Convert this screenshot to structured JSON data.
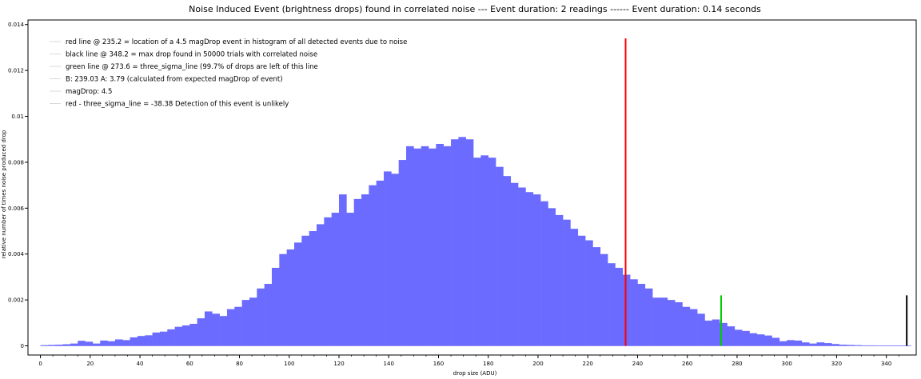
{
  "chart_data": {
    "type": "bar",
    "title": "Noise Induced Event (brightness drops) found in correlated noise --- Event duration: 2 readings ------ Event duration: 0.14 seconds",
    "xlabel": "drop size (ADU)",
    "ylabel": "relative number of times noise produced drop",
    "xlim": [
      -5,
      352
    ],
    "ylim": [
      -0.0004,
      0.0142
    ],
    "xticks": [
      0,
      20,
      40,
      60,
      80,
      100,
      120,
      140,
      160,
      180,
      200,
      220,
      240,
      260,
      280,
      300,
      320,
      340
    ],
    "yticks": [
      0,
      0.002,
      0.004,
      0.006,
      0.008,
      0.01,
      0.012,
      0.014
    ],
    "ytick_labels": [
      "0",
      "0.002",
      "0.004",
      "0.006",
      "0.008",
      "0.01",
      "0.012",
      "0.014"
    ],
    "grid": false,
    "legend_position": "top-left",
    "histogram": {
      "name": "histogram of all detected events due to noise",
      "color": "#6b6bff",
      "bin_width": 3,
      "bin_start": 0,
      "values": [
        3e-05,
        4e-05,
        5e-05,
        7e-05,
        0.0001,
        0.00022,
        0.00018,
        0.0001,
        0.00023,
        0.0002,
        0.00028,
        0.00025,
        0.00037,
        0.00043,
        0.00046,
        0.00058,
        0.00062,
        0.00072,
        0.00083,
        0.00089,
        0.00096,
        0.0012,
        0.0015,
        0.0014,
        0.0013,
        0.0016,
        0.0017,
        0.002,
        0.0021,
        0.0025,
        0.0027,
        0.0034,
        0.004,
        0.0042,
        0.0045,
        0.0048,
        0.005,
        0.0053,
        0.0056,
        0.0058,
        0.0066,
        0.0058,
        0.0064,
        0.0066,
        0.007,
        0.0072,
        0.0076,
        0.0075,
        0.0081,
        0.0087,
        0.0086,
        0.0087,
        0.0086,
        0.0088,
        0.0087,
        0.009,
        0.0091,
        0.009,
        0.0082,
        0.0083,
        0.0082,
        0.0078,
        0.0074,
        0.0071,
        0.0069,
        0.0067,
        0.0066,
        0.0063,
        0.006,
        0.0057,
        0.0055,
        0.0051,
        0.0048,
        0.0046,
        0.0043,
        0.004,
        0.0036,
        0.0034,
        0.0031,
        0.0029,
        0.0027,
        0.0025,
        0.0021,
        0.0021,
        0.002,
        0.0019,
        0.0017,
        0.0016,
        0.0014,
        0.0011,
        0.00115,
        0.001,
        0.00085,
        0.0007,
        0.00065,
        0.00055,
        0.0005,
        0.00045,
        0.00035,
        0.0002,
        0.00025,
        0.00023,
        0.00015,
        0.0001,
        0.00015,
        0.00012,
        8e-05,
        5e-05,
        4e-05,
        3e-05,
        2e-05,
        2e-05,
        1e-05,
        1e-05,
        1e-05,
        1e-05
      ]
    },
    "vertical_lines": [
      {
        "name": "red line",
        "x": 235.2,
        "y_top": 0.0134,
        "color": "#ff0000"
      },
      {
        "name": "green line",
        "x": 273.6,
        "y_top": 0.0022,
        "color": "#00cc00"
      },
      {
        "name": "black line",
        "x": 348.2,
        "y_top": 0.0022,
        "color": "#000000"
      }
    ],
    "legend": [
      "red line @ 235.2 = location of a 4.5 magDrop event in histogram of all detected events due to noise",
      "black line @ 348.2 = max drop found in 50000 trials with correlated noise",
      "green line @ 273.6 = three_sigma_line (99.7% of drops are left of this line",
      "B: 239.03  A: 3.79 (calculated from expected magDrop of event)",
      "magDrop: 4.5",
      "red - three_sigma_line = -38.38 Detection of this event is unlikely"
    ]
  }
}
